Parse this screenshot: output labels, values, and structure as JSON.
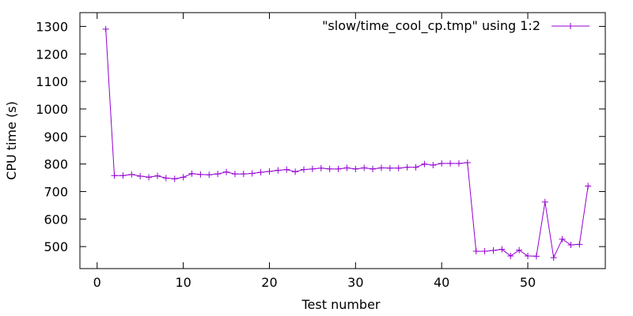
{
  "chart_data": {
    "type": "line",
    "xlabel": "Test number",
    "ylabel": "CPU time (s)",
    "xlim": [
      -2,
      59
    ],
    "ylim": [
      420,
      1350
    ],
    "xticks": [
      0,
      10,
      20,
      30,
      40,
      50
    ],
    "yticks": [
      500,
      600,
      700,
      800,
      900,
      1000,
      1100,
      1200,
      1300
    ],
    "grid": false,
    "legend_position": "top-right",
    "series": [
      {
        "name": "\"slow/time_cool_cp.tmp\" using 1:2",
        "color": "#9400d3",
        "marker": "plus",
        "x": [
          1,
          2,
          3,
          4,
          5,
          6,
          7,
          8,
          9,
          10,
          11,
          12,
          13,
          14,
          15,
          16,
          17,
          18,
          19,
          20,
          21,
          22,
          23,
          24,
          25,
          26,
          27,
          28,
          29,
          30,
          31,
          32,
          33,
          34,
          35,
          36,
          37,
          38,
          39,
          40,
          41,
          42,
          43,
          44,
          45,
          46,
          47,
          48,
          49,
          50,
          51,
          52,
          53,
          54,
          55,
          56,
          57
        ],
        "y": [
          1290,
          758,
          758,
          762,
          756,
          752,
          757,
          749,
          746,
          752,
          765,
          762,
          761,
          764,
          771,
          764,
          764,
          766,
          770,
          773,
          777,
          780,
          772,
          780,
          782,
          785,
          782,
          782,
          786,
          782,
          786,
          782,
          786,
          785,
          785,
          788,
          788,
          800,
          796,
          802,
          802,
          802,
          805,
          483,
          483,
          486,
          490,
          466,
          487,
          466,
          465,
          662,
          460,
          527,
          506,
          508,
          720
        ]
      }
    ]
  }
}
